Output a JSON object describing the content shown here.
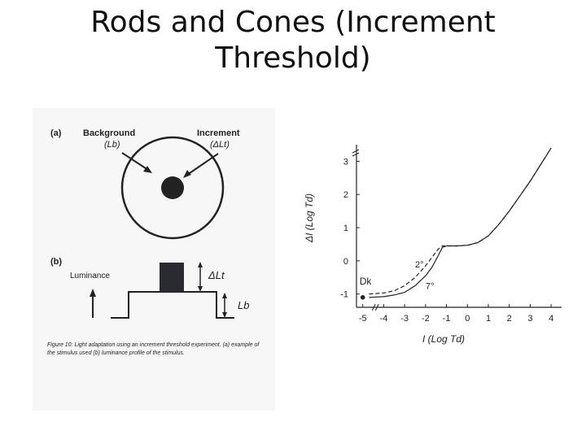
{
  "slide": {
    "title": "Rods and Cones (Increment Threshold)"
  },
  "figure": {
    "panel_a": {
      "label": "(a)",
      "background_label": "Background",
      "background_symbol": "(Lb)",
      "increment_label": "Increment",
      "increment_symbol": "(ΔLt)"
    },
    "panel_b": {
      "label": "(b)",
      "luminance_label": "Luminance",
      "delta_symbol": "ΔLt",
      "background_symbol": "Lb"
    },
    "caption": "Figure 10: Light adaptation using an increment threshold experiment. (a) example of the stimulus used (b) luminance profile of the stimulus."
  },
  "chart_data": {
    "type": "line",
    "xlabel": "I (Log Td)",
    "ylabel": "ΔI (Log Td)",
    "xlim": [
      -5.3,
      4.5
    ],
    "ylim": [
      -1.4,
      3.5
    ],
    "x_ticks": [
      "-5",
      "-4",
      "-3",
      "-2",
      "-1",
      "0",
      "1",
      "2",
      "3",
      "4"
    ],
    "y_ticks": [
      "-1",
      "0",
      "1",
      "2",
      "3"
    ],
    "series": [
      {
        "name": "2°",
        "style": "dashed",
        "x": [
          -4.7,
          -4.0,
          -3.5,
          -3.0,
          -2.5,
          -2.0,
          -1.7,
          -1.4,
          -1.2,
          -1.0,
          -0.5,
          0,
          0.5,
          1.0,
          1.5,
          2.0,
          2.5,
          3.0,
          3.5,
          4.0
        ],
        "y": [
          -1.0,
          -0.97,
          -0.9,
          -0.75,
          -0.5,
          -0.15,
          0.1,
          0.35,
          0.45,
          0.45,
          0.45,
          0.47,
          0.55,
          0.75,
          1.1,
          1.5,
          1.95,
          2.4,
          2.9,
          3.4
        ]
      },
      {
        "name": "7°",
        "style": "solid",
        "x": [
          -4.7,
          -4.0,
          -3.5,
          -3.0,
          -2.5,
          -2.0,
          -1.7,
          -1.4,
          -1.2,
          -1.0,
          -0.5,
          0,
          0.5,
          1.0,
          1.5,
          2.0,
          2.5,
          3.0,
          3.5,
          4.0
        ],
        "y": [
          -1.1,
          -1.08,
          -1.03,
          -0.95,
          -0.75,
          -0.45,
          -0.2,
          0.15,
          0.4,
          0.45,
          0.45,
          0.47,
          0.55,
          0.75,
          1.1,
          1.5,
          1.95,
          2.4,
          2.9,
          3.4
        ]
      }
    ],
    "dark_point": {
      "name": "Dk",
      "x": -5.0,
      "y": -1.1
    }
  }
}
